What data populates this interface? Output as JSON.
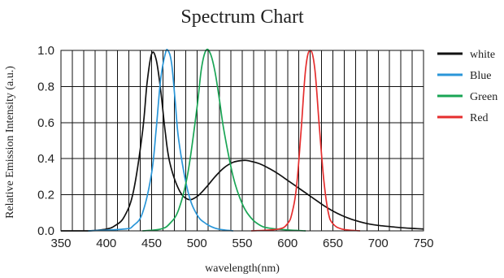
{
  "chart_data": {
    "type": "line",
    "title": "Spectrum Chart",
    "xlabel": "wavelength(nm)",
    "ylabel": "Relative Emission Intensity (a.u.)",
    "xlim": [
      350,
      750
    ],
    "ylim": [
      0,
      1.0
    ],
    "x_ticks": [
      350,
      400,
      450,
      500,
      550,
      600,
      650,
      700,
      750
    ],
    "y_ticks": [
      0.0,
      0.2,
      0.4,
      0.6,
      0.8,
      1.0
    ],
    "y_tick_labels": [
      "0.0",
      "0.2",
      "0.4",
      "0.6",
      "0.8",
      "1.0"
    ],
    "grid": true,
    "legend_position": "right",
    "series": [
      {
        "name": "white",
        "color": "#111111",
        "x": [
          350,
          380,
          400,
          410,
          420,
          430,
          440,
          445,
          450,
          455,
          460,
          465,
          470,
          480,
          490,
          500,
          510,
          520,
          530,
          540,
          550,
          555,
          560,
          570,
          580,
          590,
          600,
          610,
          620,
          630,
          640,
          650,
          660,
          670,
          680,
          690,
          700,
          710,
          720,
          730,
          740,
          750
        ],
        "y": [
          0.0,
          0.0,
          0.01,
          0.03,
          0.08,
          0.22,
          0.55,
          0.82,
          0.98,
          0.95,
          0.78,
          0.55,
          0.38,
          0.23,
          0.175,
          0.19,
          0.24,
          0.3,
          0.35,
          0.38,
          0.39,
          0.39,
          0.385,
          0.37,
          0.345,
          0.315,
          0.28,
          0.245,
          0.21,
          0.175,
          0.14,
          0.11,
          0.085,
          0.065,
          0.05,
          0.038,
          0.03,
          0.025,
          0.02,
          0.016,
          0.013,
          0.01
        ]
      },
      {
        "name": "Blue",
        "color": "#2a96d8",
        "x": [
          380,
          420,
          430,
          440,
          450,
          455,
          460,
          465,
          468,
          472,
          476,
          480,
          490,
          500,
          510,
          520,
          530,
          540
        ],
        "y": [
          0.0,
          0.01,
          0.03,
          0.1,
          0.32,
          0.56,
          0.84,
          0.98,
          1.0,
          0.93,
          0.72,
          0.5,
          0.22,
          0.09,
          0.04,
          0.015,
          0.005,
          0.0
        ]
      },
      {
        "name": "Green",
        "color": "#1aa555",
        "x": [
          440,
          460,
          470,
          480,
          490,
          500,
          505,
          510,
          515,
          520,
          525,
          530,
          540,
          550,
          560,
          570,
          580,
          600,
          620
        ],
        "y": [
          0.0,
          0.01,
          0.04,
          0.12,
          0.32,
          0.68,
          0.9,
          1.0,
          0.98,
          0.88,
          0.72,
          0.55,
          0.3,
          0.15,
          0.07,
          0.03,
          0.015,
          0.005,
          0.0
        ]
      },
      {
        "name": "Red",
        "color": "#e52e2e",
        "x": [
          560,
          590,
          600,
          605,
          610,
          615,
          620,
          625,
          630,
          635,
          640,
          645,
          650,
          660,
          680
        ],
        "y": [
          0.0,
          0.01,
          0.04,
          0.1,
          0.25,
          0.56,
          0.9,
          1.0,
          0.9,
          0.58,
          0.28,
          0.1,
          0.04,
          0.01,
          0.0
        ]
      }
    ]
  }
}
